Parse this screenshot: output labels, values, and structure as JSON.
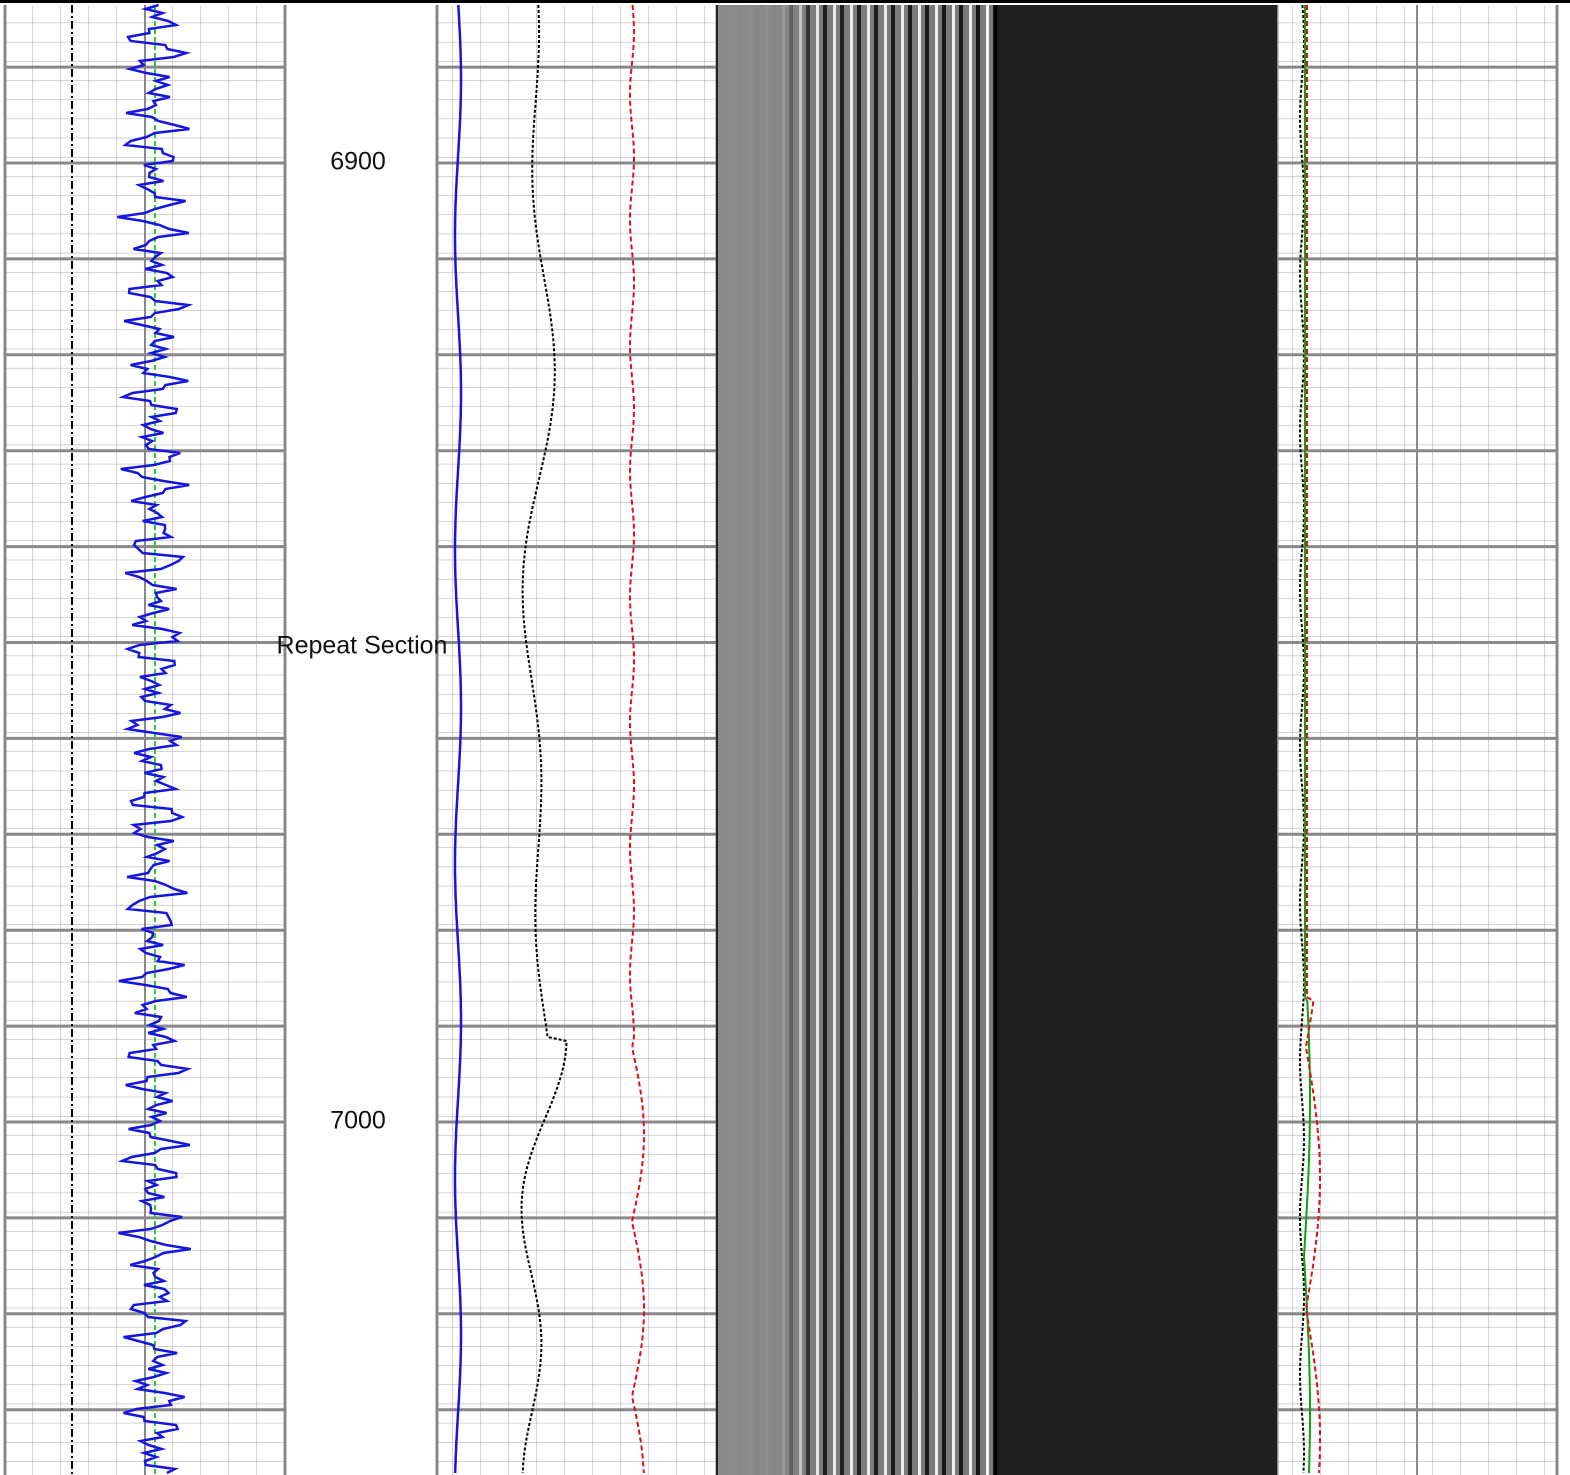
{
  "depth_labels": [
    "6900",
    "7000"
  ],
  "annotation": "Repeat Section"
}
